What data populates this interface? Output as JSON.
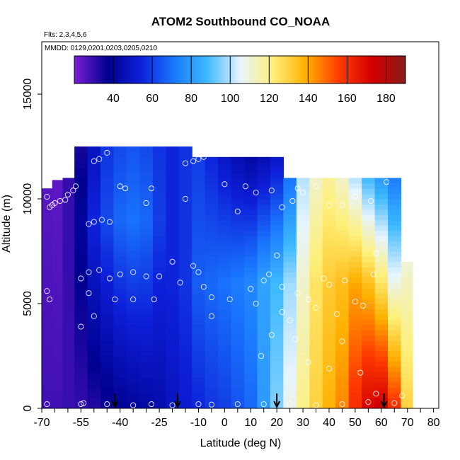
{
  "chart_data": {
    "type": "heatmap",
    "title": "ATOM2 Southbound CO_NOAA",
    "flights_note": "Flts: 2,3,4,5,6",
    "dates_note": "MMDD: 0129,0201,0203,0205,0210",
    "xlabel": "Latitude (deg N)",
    "ylabel": "Altitude (m)",
    "xlim": [
      -70,
      82
    ],
    "ylim": [
      0,
      17500
    ],
    "x_ticks": [
      -70,
      -55,
      -40,
      -25,
      -10,
      0,
      10,
      20,
      30,
      40,
      50,
      60,
      70,
      80
    ],
    "y_ticks": [
      0,
      5000,
      10000,
      15000
    ],
    "colorbar": {
      "range": [
        20,
        190
      ],
      "ticks": [
        40,
        60,
        80,
        100,
        120,
        140,
        160,
        180
      ],
      "colors": [
        "#7a1fd6",
        "#00008f",
        "#0d1fd8",
        "#1a78ff",
        "#3cb8ff",
        "#e6f4ff",
        "#fff07a",
        "#ffb000",
        "#ff3a00",
        "#d20000",
        "#8a1a1a"
      ]
    },
    "descent_markers_lat": [
      -42,
      -18,
      20,
      61
    ],
    "columns": [
      {
        "lat": -68,
        "top": 10500,
        "profile": [
          [
            0,
            28
          ],
          [
            10500,
            25
          ]
        ]
      },
      {
        "lat": -64,
        "top": 10900,
        "profile": [
          [
            0,
            28
          ],
          [
            10900,
            24
          ]
        ]
      },
      {
        "lat": -60,
        "top": 11000,
        "profile": [
          [
            0,
            29
          ],
          [
            11000,
            30
          ]
        ]
      },
      {
        "lat": -55,
        "top": 12500,
        "profile": [
          [
            0,
            30
          ],
          [
            9000,
            40
          ],
          [
            12500,
            34
          ]
        ]
      },
      {
        "lat": -50,
        "top": 12500,
        "profile": [
          [
            0,
            32
          ],
          [
            9000,
            55
          ],
          [
            12500,
            48
          ]
        ]
      },
      {
        "lat": -45,
        "top": 12500,
        "profile": [
          [
            0,
            35
          ],
          [
            9000,
            62
          ],
          [
            12500,
            58
          ]
        ]
      },
      {
        "lat": -40,
        "top": 12500,
        "profile": [
          [
            0,
            38
          ],
          [
            9000,
            68
          ],
          [
            12500,
            62
          ]
        ]
      },
      {
        "lat": -35,
        "top": 12500,
        "profile": [
          [
            0,
            40
          ],
          [
            9000,
            70
          ],
          [
            12500,
            64
          ]
        ]
      },
      {
        "lat": -30,
        "top": 12500,
        "profile": [
          [
            0,
            42
          ],
          [
            9000,
            68
          ],
          [
            12500,
            62
          ]
        ]
      },
      {
        "lat": -25,
        "top": 12500,
        "profile": [
          [
            0,
            44
          ],
          [
            9000,
            60
          ],
          [
            12500,
            58
          ]
        ]
      },
      {
        "lat": -20,
        "top": 12500,
        "profile": [
          [
            0,
            48
          ],
          [
            6000,
            55
          ],
          [
            12500,
            55
          ]
        ]
      },
      {
        "lat": -15,
        "top": 12500,
        "profile": [
          [
            0,
            52
          ],
          [
            6000,
            58
          ],
          [
            12500,
            58
          ]
        ]
      },
      {
        "lat": -10,
        "top": 12000,
        "profile": [
          [
            0,
            55
          ],
          [
            6000,
            66
          ],
          [
            12000,
            60
          ]
        ]
      },
      {
        "lat": -5,
        "top": 12000,
        "profile": [
          [
            0,
            58
          ],
          [
            6000,
            68
          ],
          [
            12000,
            55
          ]
        ]
      },
      {
        "lat": 0,
        "top": 12000,
        "profile": [
          [
            0,
            60
          ],
          [
            6000,
            70
          ],
          [
            12000,
            50
          ]
        ]
      },
      {
        "lat": 5,
        "top": 12000,
        "profile": [
          [
            0,
            64
          ],
          [
            6000,
            72
          ],
          [
            12000,
            45
          ]
        ]
      },
      {
        "lat": 10,
        "top": 12000,
        "profile": [
          [
            0,
            68
          ],
          [
            6000,
            75
          ],
          [
            12000,
            42
          ]
        ]
      },
      {
        "lat": 15,
        "top": 12000,
        "profile": [
          [
            0,
            80
          ],
          [
            6000,
            82
          ],
          [
            12000,
            45
          ]
        ]
      },
      {
        "lat": 20,
        "top": 12000,
        "profile": [
          [
            0,
            95
          ],
          [
            6000,
            88
          ],
          [
            12000,
            50
          ]
        ]
      },
      {
        "lat": 25,
        "top": 11000,
        "profile": [
          [
            0,
            108
          ],
          [
            6000,
            98
          ],
          [
            11000,
            70
          ]
        ]
      },
      {
        "lat": 30,
        "top": 11000,
        "profile": [
          [
            0,
            120
          ],
          [
            6000,
            112
          ],
          [
            11000,
            100
          ]
        ]
      },
      {
        "lat": 35,
        "top": 11000,
        "profile": [
          [
            0,
            130
          ],
          [
            6000,
            125
          ],
          [
            11000,
            112
          ]
        ]
      },
      {
        "lat": 40,
        "top": 11000,
        "profile": [
          [
            0,
            138
          ],
          [
            6000,
            132
          ],
          [
            11000,
            118
          ]
        ]
      },
      {
        "lat": 45,
        "top": 11000,
        "profile": [
          [
            0,
            145
          ],
          [
            6000,
            135
          ],
          [
            11000,
            112
          ]
        ]
      },
      {
        "lat": 50,
        "top": 11000,
        "profile": [
          [
            0,
            160
          ],
          [
            6000,
            140
          ],
          [
            11000,
            100
          ]
        ]
      },
      {
        "lat": 55,
        "top": 11000,
        "profile": [
          [
            0,
            172
          ],
          [
            6000,
            135
          ],
          [
            11000,
            88
          ]
        ]
      },
      {
        "lat": 60,
        "top": 11000,
        "profile": [
          [
            0,
            175
          ],
          [
            6000,
            125
          ],
          [
            11000,
            80
          ]
        ]
      },
      {
        "lat": 65,
        "top": 11000,
        "profile": [
          [
            0,
            160
          ],
          [
            6000,
            108
          ],
          [
            11000,
            72
          ]
        ]
      },
      {
        "lat": 70,
        "top": 7000,
        "profile": [
          [
            0,
            130
          ],
          [
            7000,
            110
          ]
        ]
      }
    ],
    "samples": [
      [
        -68,
        10100
      ],
      [
        -67,
        9600
      ],
      [
        -66,
        9700
      ],
      [
        -65,
        9800
      ],
      [
        -63,
        9900
      ],
      [
        -61,
        9950
      ],
      [
        -60,
        10200
      ],
      [
        -58,
        10400
      ],
      [
        -57,
        10600
      ],
      [
        -68,
        5600
      ],
      [
        -67,
        5200
      ],
      [
        -68,
        200
      ],
      [
        -55,
        200
      ],
      [
        -54,
        250
      ],
      [
        -45,
        200
      ],
      [
        -35,
        150
      ],
      [
        -28,
        200
      ],
      [
        -20,
        150
      ],
      [
        -10,
        200
      ],
      [
        -5,
        180
      ],
      [
        5,
        200
      ],
      [
        15,
        200
      ],
      [
        25,
        200
      ],
      [
        35,
        150
      ],
      [
        45,
        200
      ],
      [
        55,
        300
      ],
      [
        65,
        250
      ],
      [
        -55,
        6200
      ],
      [
        -52,
        6500
      ],
      [
        -48,
        6600
      ],
      [
        -44,
        6200
      ],
      [
        -40,
        6400
      ],
      [
        -35,
        6500
      ],
      [
        -30,
        6300
      ],
      [
        -25,
        6300
      ],
      [
        -20,
        7000
      ],
      [
        -52,
        8800
      ],
      [
        -50,
        8900
      ],
      [
        -47,
        9000
      ],
      [
        -44,
        8900
      ],
      [
        -30,
        9800
      ],
      [
        -12,
        6800
      ],
      [
        -10,
        6500
      ],
      [
        -8,
        5800
      ],
      [
        -5,
        5300
      ],
      [
        0,
        10700
      ],
      [
        5,
        9400
      ],
      [
        8,
        10600
      ],
      [
        12,
        10300
      ],
      [
        18,
        10400
      ],
      [
        22,
        9600
      ],
      [
        26,
        9900
      ],
      [
        30,
        10300
      ],
      [
        -45,
        12200
      ],
      [
        -48,
        11900
      ],
      [
        -50,
        11800
      ],
      [
        -15,
        11700
      ],
      [
        -12,
        11800
      ],
      [
        -10,
        11900
      ],
      [
        -8,
        12000
      ],
      [
        -40,
        10600
      ],
      [
        -38,
        10500
      ],
      [
        -28,
        10500
      ],
      [
        -15,
        10000
      ],
      [
        10,
        5700
      ],
      [
        12,
        5000
      ],
      [
        15,
        6100
      ],
      [
        17,
        6400
      ],
      [
        20,
        7300
      ],
      [
        22,
        5800
      ],
      [
        25,
        4200
      ],
      [
        28,
        5500
      ],
      [
        32,
        5200
      ],
      [
        35,
        4800
      ],
      [
        38,
        6200
      ],
      [
        40,
        5900
      ],
      [
        43,
        4500
      ],
      [
        46,
        6100
      ],
      [
        50,
        5100
      ],
      [
        53,
        4900
      ],
      [
        57,
        6400
      ],
      [
        58,
        7400
      ],
      [
        40,
        9700
      ],
      [
        45,
        9700
      ],
      [
        50,
        10100
      ],
      [
        56,
        9900
      ],
      [
        64,
        11200
      ],
      [
        62,
        10800
      ],
      [
        35,
        10600
      ],
      [
        28,
        10500
      ],
      [
        -55,
        3900
      ],
      [
        -50,
        4400
      ],
      [
        -52,
        5500
      ],
      [
        -42,
        5200
      ],
      [
        -35,
        5200
      ],
      [
        -27,
        5200
      ],
      [
        -17,
        6000
      ],
      [
        -5,
        4400
      ],
      [
        2,
        5200
      ],
      [
        14,
        2500
      ],
      [
        18,
        3500
      ],
      [
        22,
        4600
      ],
      [
        27,
        3300
      ],
      [
        32,
        2200
      ],
      [
        40,
        1900
      ],
      [
        45,
        3200
      ],
      [
        52,
        1700
      ],
      [
        58,
        700
      ],
      [
        68,
        600
      ]
    ]
  }
}
